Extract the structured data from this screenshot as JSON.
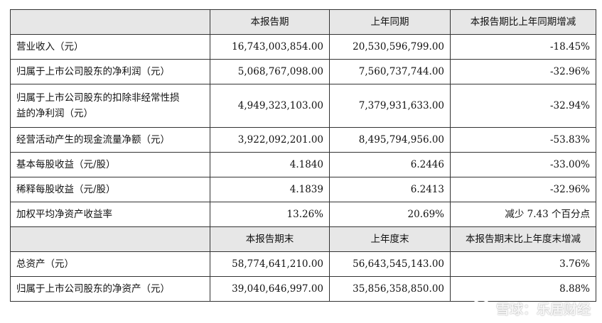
{
  "header1": [
    "",
    "本报告期",
    "上年同期",
    "本报告期比上年同期增减"
  ],
  "rows1": [
    {
      "label": "营业收入（元）",
      "cur": "16,743,003,854.00",
      "prev": "20,530,596,799.00",
      "change": "-18.45%"
    },
    {
      "label": "归属于上市公司股东的净利润（元）",
      "cur": "5,068,767,098.00",
      "prev": "7,560,737,744.00",
      "change": "-32.96%"
    },
    {
      "label_l1": "归属于上市公司股东的扣除非经常性损",
      "label_l2": "益的净利润（元）",
      "cur": "4,949,323,103.00",
      "prev": "7,379,931,633.00",
      "change": "-32.94%"
    },
    {
      "label": "经营活动产生的现金流量净额（元）",
      "cur": "3,922,092,201.00",
      "prev": "8,495,794,956.00",
      "change": "-53.83%"
    },
    {
      "label": "基本每股收益（元/股）",
      "cur": "4.1840",
      "prev": "6.2446",
      "change": "-33.00%"
    },
    {
      "label": "稀释每股收益（元/股）",
      "cur": "4.1839",
      "prev": "6.2413",
      "change": "-32.96%"
    },
    {
      "label": "加权平均净资产收益率",
      "cur": "13.26%",
      "prev": "20.69%",
      "change": "减少 7.43 个百分点"
    }
  ],
  "header2": [
    "",
    "本报告期末",
    "上年度末",
    "本报告期末比上年度末增减"
  ],
  "rows2": [
    {
      "label": "总资产（元）",
      "cur": "58,774,641,210.00",
      "prev": "56,643,545,143.00",
      "change": "3.76%"
    },
    {
      "label": "归属于上市公司股东的净资产（元）",
      "cur": "39,040,646,997.00",
      "prev": "35,856,358,850.00",
      "change": "8.88%"
    }
  ],
  "watermark": {
    "text": "雪球：乐居财经",
    "icon": "snowball-logo-icon"
  }
}
